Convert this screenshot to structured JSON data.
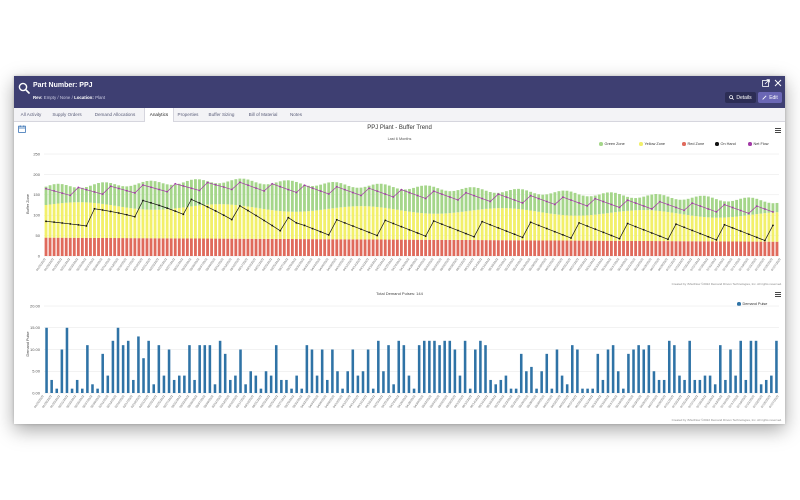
{
  "header": {
    "title": "Part Number: PPJ",
    "rev_label": "Rev:",
    "rev_value": "Empty / None",
    "location_label": "Location:",
    "location_value": "Plant",
    "details_label": "Details",
    "edit_label": "Edit"
  },
  "tabs": [
    {
      "label": "All Activity"
    },
    {
      "label": "Supply Orders"
    },
    {
      "label": "Demand Allocations"
    },
    {
      "label": "Analytics",
      "active": true
    },
    {
      "label": "Properties"
    },
    {
      "label": "Buffer Sizing"
    },
    {
      "label": "Bill of Material"
    },
    {
      "label": "Notes"
    }
  ],
  "colors": {
    "header_bg": "#3e3f72",
    "green_zone": "#a5d68a",
    "yellow_zone": "#f2f06a",
    "red_zone": "#e06a5c",
    "on_hand": "#111111",
    "net_flow": "#a23aa6",
    "demand_pulse": "#2f73a6",
    "edit_button": "#6b67b5"
  },
  "chart_data": [
    {
      "type": "bar",
      "stacked": true,
      "title": "PPJ Plant - Buffer Trend",
      "subtitle": "Last 6 Months",
      "ylabel": "Buffer Zone",
      "ylim": [
        0,
        250
      ],
      "yticks": [
        0,
        50,
        100,
        150,
        200,
        250
      ],
      "grid": true,
      "legend_position": "top-right",
      "credit": "Created by iShutFlow ©2022 Demand Driven Technologies, Inc. All rights reserved.",
      "x_start": "01/26/2022",
      "x_end": "07/27/2022",
      "x_label_step_days": 2,
      "days": 182,
      "series": [
        {
          "name": "Green Zone",
          "kind": "bar",
          "color": "#a5d68a",
          "summary": {
            "top_start": 170,
            "top_peak": 185,
            "top_end": 135
          }
        },
        {
          "name": "Yellow Zone",
          "kind": "bar",
          "color": "#f2f06a",
          "summary": {
            "top_start": 125,
            "top_end": 100
          }
        },
        {
          "name": "Red Zone",
          "kind": "bar",
          "color": "#e06a5c",
          "summary": {
            "level_start": 45,
            "level_end": 35
          }
        },
        {
          "name": "On Hand",
          "kind": "line",
          "color": "#111111",
          "summary": {
            "min": 5,
            "max": 145
          }
        },
        {
          "name": "Net Flow",
          "kind": "line",
          "color": "#a23aa6",
          "summary": {
            "min": 95,
            "max": 185
          }
        }
      ]
    },
    {
      "type": "bar",
      "title": "Total Demand Pulses: 144",
      "ylabel": "Demand Pulse",
      "ylim": [
        0,
        20
      ],
      "yticks": [
        "0.00",
        "5.00",
        "10.00",
        "15.00",
        "20.00"
      ],
      "grid": true,
      "legend_position": "top-right",
      "credit": "Created by iShutFlow ©2022 Demand Driven Technologies, Inc. All rights reserved.",
      "x_start": "01/26/2022",
      "x_end": "07/27/2022",
      "series": [
        {
          "name": "Demand Pulse",
          "color": "#2f73a6",
          "values": [
            15,
            3,
            1,
            10,
            15,
            1,
            3,
            1,
            11,
            2,
            1,
            9,
            4,
            12,
            15,
            11,
            12,
            3,
            13,
            8,
            12,
            2,
            11,
            4,
            10,
            3,
            4,
            4,
            11,
            3,
            11,
            11,
            11,
            2,
            12,
            9,
            3,
            4,
            10,
            2,
            5,
            4,
            1,
            5,
            4,
            11,
            3,
            3,
            1,
            4,
            1,
            11,
            10,
            4,
            10,
            3,
            10,
            5,
            1,
            5,
            10,
            4,
            5,
            10,
            1,
            12,
            5,
            11,
            2,
            12,
            11,
            4,
            1,
            11,
            12,
            12,
            12,
            11,
            12,
            12,
            10,
            4,
            12,
            1,
            10,
            12,
            11,
            3,
            2,
            3,
            4,
            1,
            1,
            9,
            5,
            6,
            1,
            5,
            9,
            1,
            10,
            4,
            2,
            11,
            10,
            1,
            1,
            1,
            9,
            3,
            10,
            11,
            5,
            1,
            9,
            10,
            11,
            10,
            11,
            5,
            3,
            3,
            12,
            11,
            4,
            3,
            12,
            3,
            3,
            4,
            4,
            2,
            11,
            3,
            10,
            4,
            12,
            3,
            12,
            12,
            2,
            3,
            4,
            12
          ]
        }
      ]
    }
  ]
}
